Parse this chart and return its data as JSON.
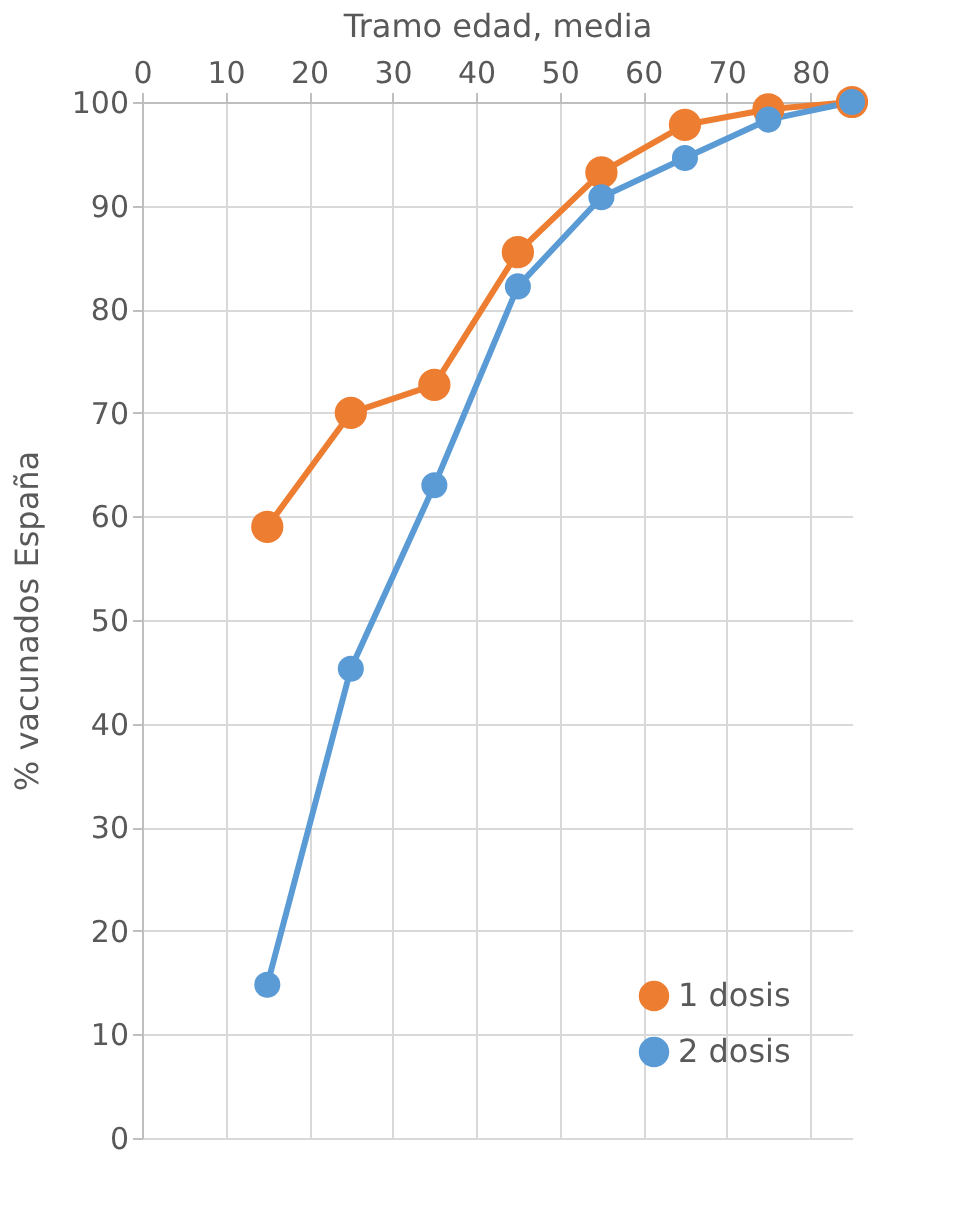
{
  "chart_data": {
    "type": "line",
    "xlabel": "Tramo edad, media",
    "ylabel": "% vacunados España",
    "x": [
      15,
      25,
      35,
      45,
      55,
      65,
      75,
      85
    ],
    "series": [
      {
        "name": "1 dosis",
        "color": "#ed7d31",
        "values": [
          59,
          70,
          72.7,
          85.5,
          93.2,
          97.8,
          99.3,
          100
        ]
      },
      {
        "name": "2 dosis",
        "color": "#5b9bd5",
        "values": [
          14.8,
          45.3,
          63,
          82.2,
          90.8,
          94.6,
          98.3,
          100
        ]
      }
    ],
    "xlim": [
      0,
      85
    ],
    "xticks": [
      0,
      10,
      20,
      30,
      40,
      50,
      60,
      70,
      80
    ],
    "ylim": [
      0,
      100
    ],
    "yticks": [
      0,
      10,
      20,
      30,
      40,
      50,
      60,
      70,
      80,
      90,
      100
    ],
    "grid": true,
    "legend": "bottom right",
    "marker": "circle",
    "line_style": "solid"
  }
}
